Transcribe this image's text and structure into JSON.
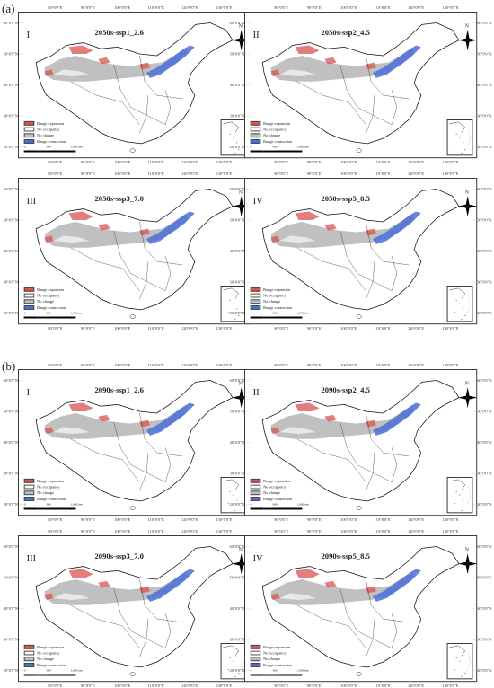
{
  "sections": [
    {
      "label": "(a)"
    },
    {
      "label": "(b)"
    }
  ],
  "panels": [
    {
      "roman": "I",
      "scenario": "2050s-ssp1_2.6"
    },
    {
      "roman": "II",
      "scenario": "2050s-ssp2_4.5"
    },
    {
      "roman": "III",
      "scenario": "2050s-ssp3_7.0"
    },
    {
      "roman": "IV",
      "scenario": "2050s-ssp5_8.5"
    },
    {
      "roman": "I",
      "scenario": "2090s-ssp1_2.6"
    },
    {
      "roman": "II",
      "scenario": "2090s-ssp2_4.5"
    },
    {
      "roman": "III",
      "scenario": "2090s-ssp3_7.0"
    },
    {
      "roman": "IV",
      "scenario": "2090s-ssp5_8.5"
    }
  ],
  "lon_ticks": [
    "80°0'0\"E",
    "90°0'0\"E",
    "100°0'0\"E",
    "110°0'0\"E",
    "120°0'0\"E",
    "130°0'0\"E"
  ],
  "lat_ticks": [
    "60°0'0\"N",
    "50°0'0\"N",
    "40°0'0\"N",
    "30°0'0\"N",
    "20°0'0\"N"
  ],
  "legend": [
    {
      "label": "Range expansion",
      "color": "#d9534f"
    },
    {
      "label": "No occupancy",
      "color": "#ffffff"
    },
    {
      "label": "No change",
      "color": "#c0c0c0"
    },
    {
      "label": "Range contraction",
      "color": "#4a6fd8"
    }
  ],
  "scalebar": {
    "ticks": [
      "0",
      "900",
      "1,800"
    ],
    "unit": "km"
  },
  "compass": {
    "north": "N"
  }
}
